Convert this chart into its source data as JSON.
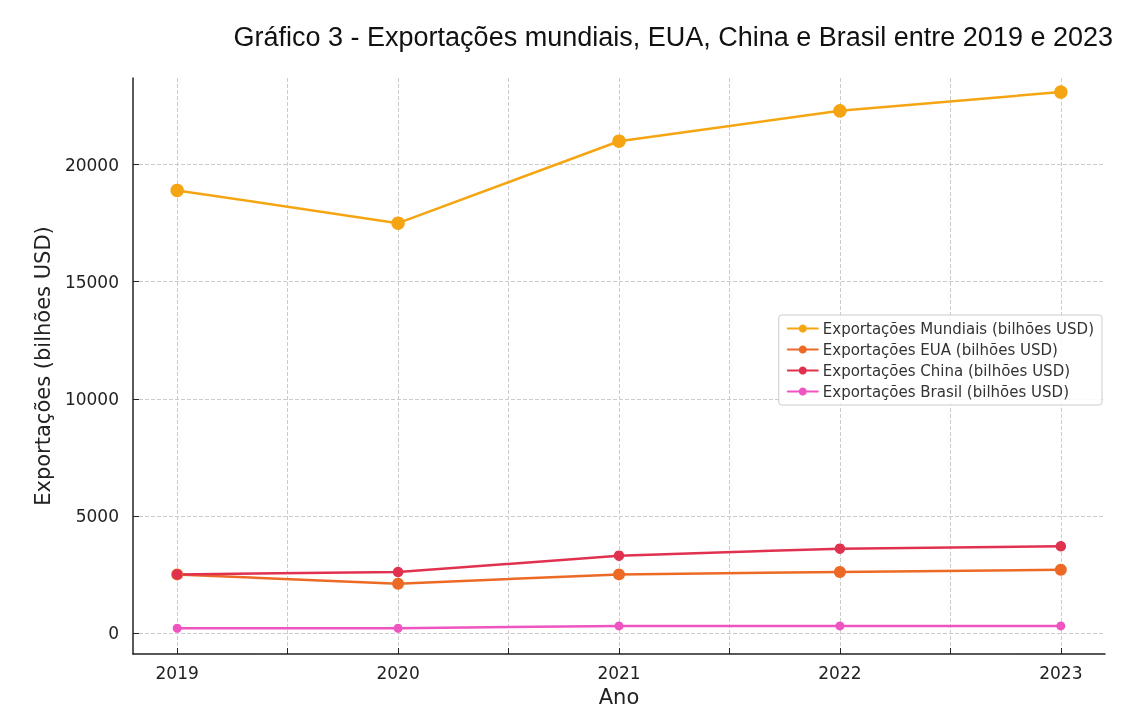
{
  "chart_data": {
    "type": "line",
    "title": "Gráfico 3 - Exportações mundiais, EUA, China e Brasil entre 2019 e 2023",
    "xlabel": "Ano",
    "ylabel": "Exportações (bilhões USD)",
    "x": [
      2019,
      2020,
      2021,
      2022,
      2023
    ],
    "series": [
      {
        "name": "Exportações Mundiais (bilhões USD)",
        "color": "#f5a511",
        "values": [
          18900,
          17500,
          21000,
          22300,
          23100
        ]
      },
      {
        "name": "Exportações EUA (bilhões USD)",
        "color": "#ec6a26",
        "values": [
          2500,
          2100,
          2500,
          2600,
          2700
        ]
      },
      {
        "name": "Exportações China (bilhões USD)",
        "color": "#e0324f",
        "values": [
          2500,
          2600,
          3300,
          3600,
          3700
        ]
      },
      {
        "name": "Exportações Brasil (bilhões USD)",
        "color": "#ef55c0",
        "values": [
          200,
          200,
          300,
          300,
          300
        ]
      }
    ],
    "xlim": [
      2018.8,
      2023.2
    ],
    "xticks": [
      2019,
      {
        "value": 2019.5,
        "label": null
      },
      2020,
      {
        "value": 2020.5,
        "label": null
      },
      2021,
      {
        "value": 2021.5,
        "label": null
      },
      2022,
      {
        "value": 2022.5,
        "label": null
      },
      2023
    ],
    "ylim": [
      -900,
      23700
    ],
    "yticks": [
      0,
      5000,
      10000,
      15000,
      20000
    ],
    "grid": true,
    "legend": "right",
    "marker": "circle",
    "line_style": "solid"
  }
}
